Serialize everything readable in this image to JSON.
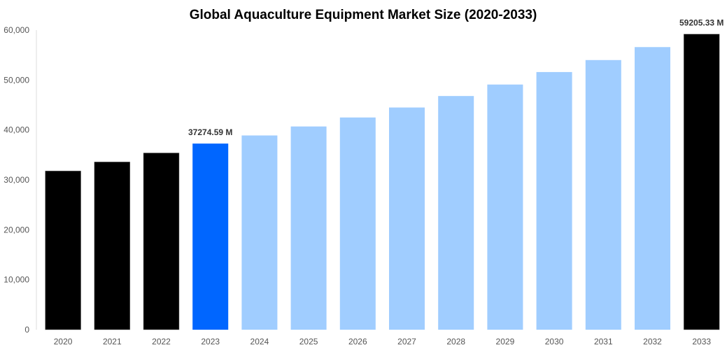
{
  "chart_data": {
    "type": "bar",
    "title": "Global Aquaculture Equipment Market Size (2020-2033)",
    "xlabel": "",
    "ylabel": "",
    "ylim": [
      0,
      60000
    ],
    "yticks": [
      "0",
      "10,000",
      "20,000",
      "30,000",
      "40,000",
      "50,000",
      "60,000"
    ],
    "ytick_values": [
      0,
      10000,
      20000,
      30000,
      40000,
      50000,
      60000
    ],
    "grid": false,
    "categories": [
      "2020",
      "2021",
      "2022",
      "2023",
      "2024",
      "2025",
      "2026",
      "2027",
      "2028",
      "2029",
      "2030",
      "2031",
      "2032",
      "2033"
    ],
    "values": [
      31800,
      33600,
      35400,
      37274.59,
      38900,
      40700,
      42500,
      44500,
      46800,
      49100,
      51600,
      54000,
      56600,
      59205.33
    ],
    "bar_colors": [
      "#000000",
      "#000000",
      "#000000",
      "#0066ff",
      "#a0cdff",
      "#a0cdff",
      "#a0cdff",
      "#a0cdff",
      "#a0cdff",
      "#a0cdff",
      "#a0cdff",
      "#a0cdff",
      "#a0cdff",
      "#000000"
    ],
    "data_labels": [
      {
        "category": "2023",
        "text": "37274.59 M"
      },
      {
        "category": "2033",
        "text": "59205.33 M"
      }
    ]
  }
}
